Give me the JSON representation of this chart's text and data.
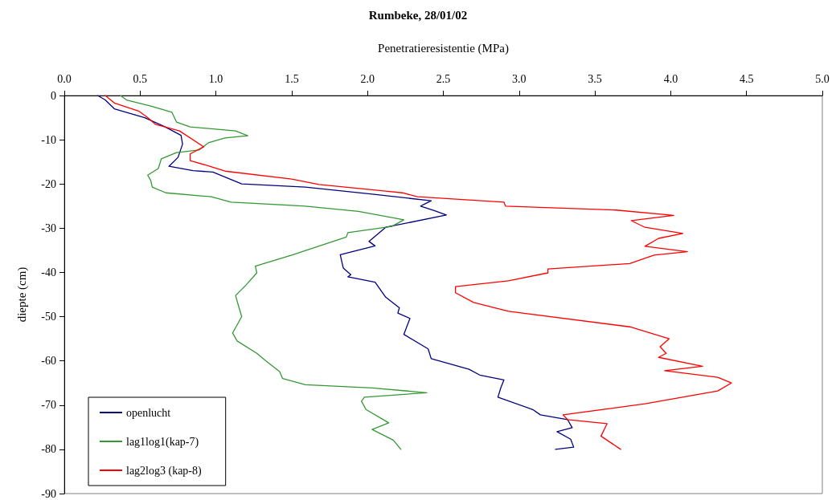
{
  "chart_data": {
    "type": "line",
    "title": "Rumbeke, 28/01/02",
    "xlabel": "Penetratieresistentie (MPa)",
    "ylabel": "diepte (cm)",
    "xlim": [
      0,
      5
    ],
    "xticks": [
      {
        "value": 0,
        "label": "0.0"
      },
      0.5,
      {
        "value": 1,
        "label": "1.0"
      },
      1.5,
      {
        "value": 2,
        "label": "2.0"
      },
      2.5,
      {
        "value": 3,
        "label": "3.0"
      },
      3.5,
      {
        "value": 4,
        "label": "4.0"
      },
      4.5,
      {
        "value": 5,
        "label": "5.0"
      }
    ],
    "ylim": [
      -90,
      0
    ],
    "yticks": [
      -90,
      -80,
      -70,
      -60,
      -50,
      -40,
      -30,
      -20,
      -10,
      0
    ],
    "grid": false,
    "legend": "bottom left",
    "marker": "none",
    "line_style": "solid",
    "series": [
      {
        "name": "openlucht",
        "color": "#000080",
        "x": [
          0.22,
          0.27,
          0.33,
          0.53,
          0.66,
          0.77,
          0.78,
          0.75,
          0.69,
          0.85,
          0.98,
          1.17,
          1.59,
          2.03,
          2.42,
          2.35,
          2.44,
          2.52,
          2.12,
          2.01,
          2.05,
          1.82,
          1.84,
          1.89,
          1.87,
          2.05,
          2.12,
          2.21,
          2.2,
          2.28,
          2.24,
          2.4,
          2.42,
          2.67,
          2.74,
          2.9,
          2.88,
          2.86,
          3.09,
          3.14,
          3.32,
          3.35,
          3.25,
          3.34,
          3.36,
          3.24
        ],
        "values": [
          0,
          -1,
          -3,
          -5,
          -7,
          -9,
          -11,
          -14,
          -16,
          -17,
          -17.3,
          -20,
          -20.7,
          -22.3,
          -23.8,
          -25,
          -26,
          -27,
          -29.8,
          -33,
          -34,
          -36,
          -39,
          -40.5,
          -41,
          -42.2,
          -45.6,
          -48,
          -49.2,
          -50.4,
          -54,
          -57.3,
          -59.5,
          -61.9,
          -63.2,
          -64.3,
          -66,
          -68.2,
          -71,
          -72.2,
          -73.3,
          -75.1,
          -76,
          -77.7,
          -79.5,
          -80
        ]
      },
      {
        "name": "lag1log1(kap-7)",
        "color": "#339933",
        "x": [
          0.37,
          0.41,
          0.57,
          0.71,
          0.74,
          0.83,
          1.13,
          1.21,
          1.06,
          0.95,
          0.89,
          0.74,
          0.64,
          0.62,
          0.55,
          0.57,
          0.58,
          0.67,
          0.97,
          1.1,
          1.59,
          1.94,
          2.24,
          2.16,
          1.87,
          1.86,
          1.5,
          1.26,
          1.27,
          1.2,
          1.13,
          1.14,
          1.17,
          1.11,
          1.14,
          1.27,
          1.33,
          1.42,
          1.44,
          1.59,
          2.03,
          2.39,
          1.98,
          1.96,
          1.99,
          2.14,
          2.03,
          2.17,
          2.22
        ],
        "values": [
          0,
          -1,
          -2.4,
          -3.8,
          -6,
          -7.1,
          -8,
          -9.1,
          -9.6,
          -10.7,
          -12.3,
          -12.9,
          -14.3,
          -16.5,
          -18,
          -19.2,
          -20.7,
          -22,
          -22.9,
          -24.1,
          -25,
          -26.2,
          -28.1,
          -29.6,
          -31,
          -32,
          -36.1,
          -38.6,
          -40.1,
          -42.8,
          -45.2,
          -46.5,
          -50,
          -53.7,
          -55.5,
          -58.3,
          -60,
          -62.4,
          -64,
          -65.4,
          -66.1,
          -67.2,
          -68.2,
          -69.1,
          -71,
          -74,
          -75.5,
          -77.9,
          -80
        ]
      },
      {
        "name": "lag2log3 (kap-8)",
        "color": "#ff0000",
        "x": [
          0.27,
          0.33,
          0.49,
          0.55,
          0.6,
          0.76,
          0.92,
          0.83,
          0.83,
          0.95,
          1.06,
          1.5,
          1.68,
          2.12,
          2.23,
          2.33,
          2.9,
          2.91,
          3.64,
          4.02,
          3.74,
          3.83,
          4.08,
          3.92,
          3.83,
          4.11,
          3.89,
          3.73,
          3.19,
          3.19,
          2.93,
          2.58,
          2.58,
          2.7,
          2.93,
          3.73,
          3.99,
          3.93,
          3.97,
          3.92,
          4.21,
          3.96,
          4.31,
          4.4,
          4.31,
          3.83,
          3.29,
          3.32,
          3.58,
          3.54,
          3.67
        ],
        "values": [
          0,
          -1.7,
          -3.5,
          -5,
          -6.5,
          -8,
          -11.6,
          -13.2,
          -14.7,
          -15.9,
          -17.1,
          -18.9,
          -20.1,
          -21.6,
          -22,
          -22.9,
          -24.1,
          -25,
          -25.9,
          -27.1,
          -28.3,
          -29.8,
          -31.2,
          -32.3,
          -34.1,
          -35.3,
          -36.1,
          -38,
          -39.2,
          -40.1,
          -41.9,
          -43.2,
          -44.6,
          -46.8,
          -48.8,
          -52.3,
          -55,
          -56.8,
          -58.3,
          -59.2,
          -61.2,
          -62.2,
          -63.7,
          -65,
          -66.8,
          -69.7,
          -72.2,
          -73.3,
          -74.2,
          -77,
          -80
        ]
      }
    ]
  }
}
